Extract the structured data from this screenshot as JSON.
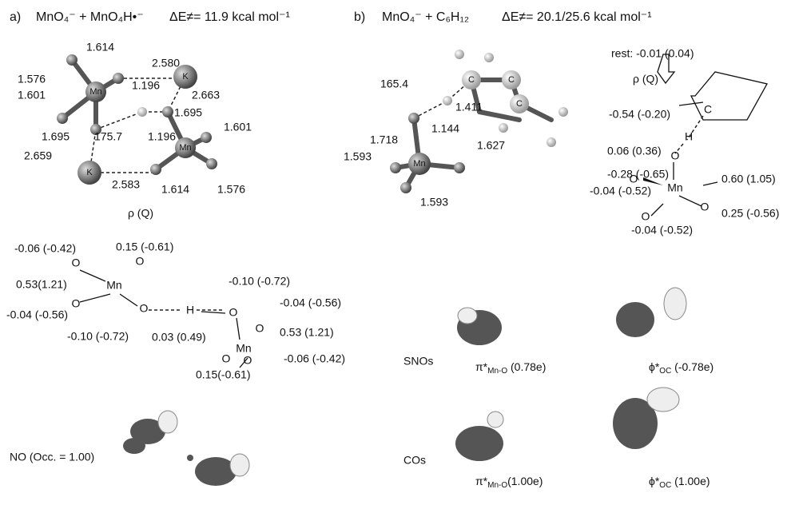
{
  "panel_a": {
    "label": "a)",
    "title": "MnO₄⁻ + MnO₄H•⁻",
    "energy": "ΔE≠= 11.9 kcal mol⁻¹",
    "geometry": [
      "1.614",
      "2.580",
      "1.576",
      "1.196",
      "2.663",
      "1.601",
      "1.695",
      "1.695",
      "175.7",
      "1.196",
      "1.601",
      "2.659",
      "2.583",
      "1.614",
      "1.576"
    ],
    "atoms": [
      "Mn",
      "K",
      "K",
      "Mn"
    ],
    "charge_header": "ρ (Q)",
    "charges": [
      "0.15 (-0.61)",
      "-0.06 (-0.42)",
      "0.53(1.21)",
      "-0.04 (-0.56)",
      "-0.10 (-0.72)",
      "0.03 (0.49)",
      "-0.10 (-0.72)",
      "-0.04 (-0.56)",
      "0.53 (1.21)",
      "-0.06 (-0.42)",
      "0.15(-0.61)"
    ],
    "charge_atoms": [
      "O",
      "O",
      "Mn",
      "O",
      "O",
      "H",
      "O",
      "O",
      "Mn",
      "O",
      "O"
    ],
    "orbital_label": "NO (Occ. = 1.00)"
  },
  "panel_b": {
    "label": "b)",
    "title": "MnO₄⁻ + C₆H₁₂",
    "energy": "ΔE≠= 20.1/25.6 kcal mol⁻¹",
    "geometry": [
      "165.4",
      "1.411",
      "1.144",
      "1.718",
      "1.627",
      "1.593",
      "1.593"
    ],
    "atoms": [
      "Mn",
      "C",
      "C",
      "C"
    ],
    "rest": "rest: -0.01 (0.04)",
    "charge_header": "ρ (Q)",
    "charges": [
      "-0.54 (-0.20)",
      "0.06 (0.36)",
      "-0.28 (-0.65)",
      "0.60 (1.05)",
      "-0.04 (-0.52)",
      "0.25 (-0.56)",
      "-0.04 (-0.52)"
    ],
    "charge_atoms": [
      "C",
      "H",
      "O",
      "O",
      "Mn",
      "O",
      "O"
    ],
    "rows": [
      "SNOs",
      "COs"
    ],
    "orbitals": [
      {
        "symbol": "π*",
        "sub": "Mn-O",
        "occ": " (0.78e)"
      },
      {
        "symbol": "ϕ*",
        "sub": "OC",
        "occ": " (-0.78e)"
      },
      {
        "symbol": "π*",
        "sub": "Mn-O",
        "occ": "(1.00e)"
      },
      {
        "symbol": "ϕ*",
        "sub": "OC",
        "occ": " (1.00e)"
      }
    ]
  }
}
